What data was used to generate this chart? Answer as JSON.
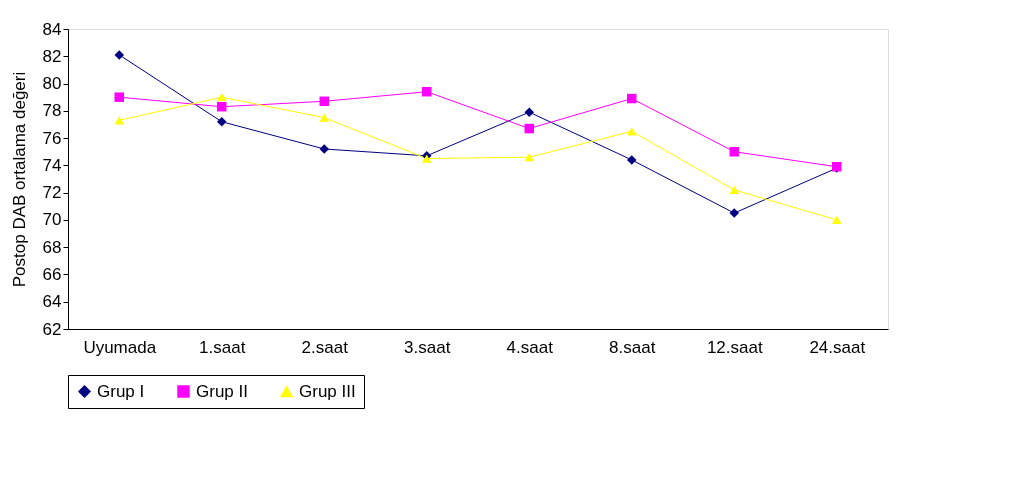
{
  "chart_data": {
    "type": "line",
    "ylabel": "Postop DAB ortalama değeri",
    "categories": [
      "Uyumada",
      "1.saat",
      "2.saat",
      "3.saat",
      "4.saat",
      "8.saat",
      "12.saat",
      "24.saat"
    ],
    "series": [
      {
        "name": "Grup I",
        "color": "#000080",
        "marker": "diamond",
        "values": [
          82.1,
          77.2,
          75.2,
          74.7,
          77.9,
          74.4,
          70.5,
          73.8
        ]
      },
      {
        "name": "Grup II",
        "color": "#ff00ff",
        "marker": "square",
        "values": [
          79.0,
          78.3,
          78.7,
          79.4,
          76.7,
          78.9,
          75.0,
          73.9
        ]
      },
      {
        "name": "Grup III",
        "color": "#ffff00",
        "marker": "triangle",
        "values": [
          77.3,
          79.0,
          77.5,
          74.5,
          74.6,
          76.5,
          72.2,
          70.0
        ]
      }
    ],
    "ylim": [
      62,
      84
    ],
    "yticks": [
      62,
      64,
      66,
      68,
      70,
      72,
      74,
      76,
      78,
      80,
      82,
      84
    ],
    "grid": false,
    "legend": "bottom",
    "line_style": "solid"
  }
}
